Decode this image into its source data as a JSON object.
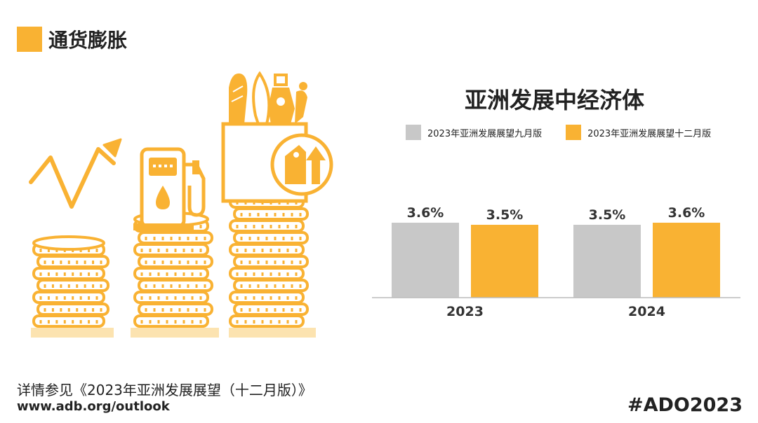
{
  "header": {
    "title": "通货膨胀",
    "swatch_color": "#F9B233"
  },
  "chart_data": {
    "type": "bar",
    "title": "亚洲发展中经济体",
    "categories": [
      "2023",
      "2024"
    ],
    "series": [
      {
        "name": "2023年亚洲发展展望九月版",
        "color": "#C8C8C8",
        "values": [
          3.6,
          3.5
        ],
        "labels": [
          "3.6%",
          "3.5%"
        ]
      },
      {
        "name": "2023年亚洲发展展望十二月版",
        "color": "#F9B233",
        "values": [
          3.5,
          3.6
        ],
        "labels": [
          "3.5%",
          "3.6%"
        ]
      }
    ],
    "ylim": [
      0,
      3.6
    ],
    "grid": false,
    "legend_position": "top"
  },
  "illustration": {
    "icons": [
      "trend-arrow-icon",
      "fuel-pump-icon",
      "grocery-bag-icon",
      "price-tag-up-icon",
      "coin-stack-icon"
    ],
    "accent_color": "#F9B233"
  },
  "footer": {
    "note": "详情参见《2023年亚洲发展展望（十二月版）》",
    "url": "www.adb.org/outlook",
    "hashtag": "#ADO2023"
  }
}
